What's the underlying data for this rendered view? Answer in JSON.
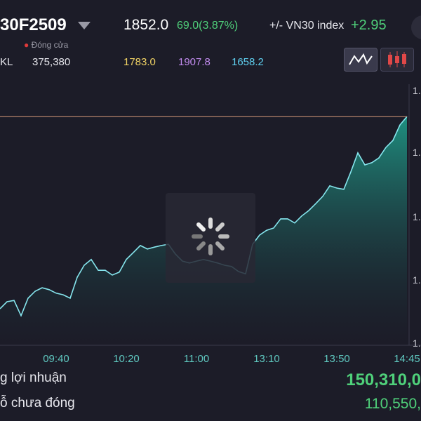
{
  "header": {
    "symbol": "30F2509",
    "status": "Đóng cửa",
    "price": "1852.0",
    "change": "69.0(3.87%)",
    "index_label": "+/- VN30 index",
    "index_change": "+2.95",
    "volume_label": "KL",
    "volume": "375,380",
    "open": "1783.0",
    "high": "1907.8",
    "low": "1658.2"
  },
  "chart_data": {
    "type": "line",
    "categories": [
      null,
      null,
      null,
      null,
      null,
      null,
      null,
      null,
      "09:40",
      null,
      null,
      null,
      null,
      null,
      null,
      null,
      null,
      null,
      "10:20",
      null,
      null,
      null,
      null,
      null,
      null,
      null,
      null,
      null,
      "11:00",
      null,
      null,
      null,
      null,
      null,
      null,
      null,
      null,
      null,
      "13:10",
      null,
      null,
      null,
      null,
      null,
      null,
      null,
      null,
      null,
      "13:50",
      null,
      null,
      null,
      null,
      null,
      null,
      null,
      null,
      null,
      "14:45"
    ],
    "values": [
      1791.5,
      1793.7,
      1794.1,
      1789.3,
      1794.8,
      1797.0,
      1798.1,
      1797.5,
      1796.4,
      1795.9,
      1794.8,
      1801.4,
      1805.2,
      1807.0,
      1803.6,
      1803.6,
      1802.1,
      1803.0,
      1807.0,
      1809.2,
      1811.4,
      1810.3,
      1810.9,
      1811.4,
      1811.8,
      1808.7,
      1806.5,
      1805.9,
      1806.5,
      1807.0,
      1806.5,
      1805.9,
      1805.2,
      1804.8,
      1803.2,
      1802.5,
      1811.8,
      1814.7,
      1816.2,
      1816.9,
      1819.8,
      1819.8,
      1818.5,
      1820.7,
      1822.4,
      1824.6,
      1826.9,
      1830.2,
      1829.5,
      1829.1,
      1834.6,
      1840.6,
      1836.8,
      1837.5,
      1839.0,
      1842.3,
      1844.5,
      1849.4,
      1852.0
    ],
    "color": "#86e6ee",
    "ylim": [
      1780,
      1860
    ],
    "y_tick_labels": [
      "1.",
      "1.",
      "1.",
      "1.",
      "1."
    ]
  },
  "summary": {
    "rows": [
      {
        "label": "g lợi nhuận",
        "value": "150,310,0"
      },
      {
        "label": "ỗ chưa đóng",
        "value": "110,550,"
      }
    ]
  }
}
